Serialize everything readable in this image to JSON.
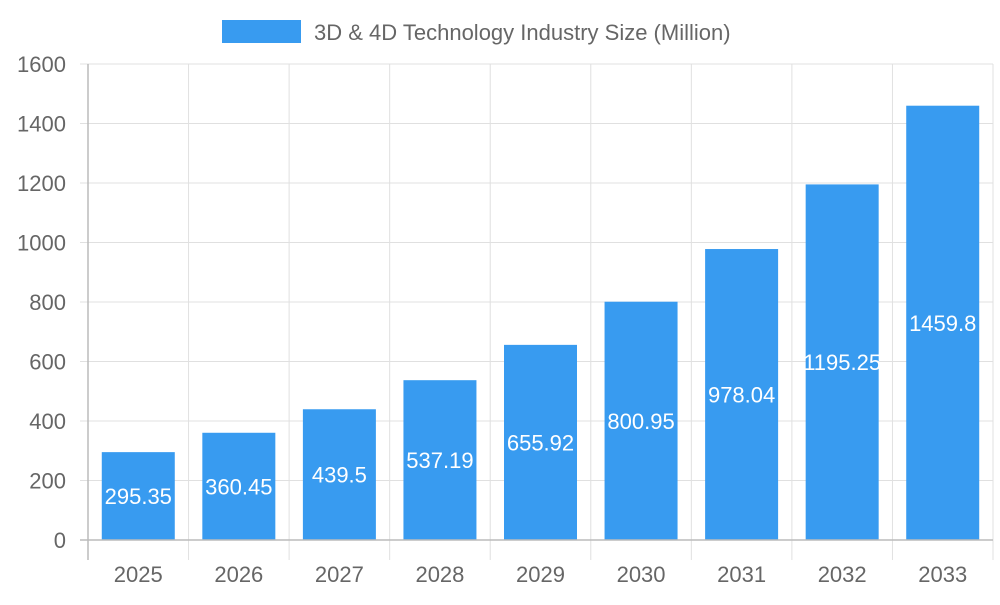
{
  "chart_data": {
    "type": "bar",
    "title": "",
    "xlabel": "",
    "ylabel": "",
    "legend": {
      "position": "top",
      "entries": [
        "3D & 4D Technology Industry Size (Million)"
      ]
    },
    "categories": [
      "2025",
      "2026",
      "2027",
      "2028",
      "2029",
      "2030",
      "2031",
      "2032",
      "2033"
    ],
    "series": [
      {
        "name": "3D & 4D Technology Industry Size (Million)",
        "values": [
          295.35,
          360.45,
          439.5,
          537.19,
          655.92,
          800.95,
          978.04,
          1195.25,
          1459.8
        ],
        "data_labels": [
          "295.35",
          "360.45",
          "439.5",
          "537.19",
          "655.92",
          "800.95",
          "978.04",
          "1195.25",
          "1459.8"
        ]
      }
    ],
    "ylim": [
      0,
      1600
    ],
    "yticks": [
      "0",
      "200",
      "400",
      "600",
      "800",
      "1000",
      "1200",
      "1400",
      "1600"
    ],
    "grid": true,
    "colors": {
      "bar": "#389BF0",
      "grid": "#e0e0e0",
      "text": "#666666",
      "label": "#ffffff"
    }
  }
}
